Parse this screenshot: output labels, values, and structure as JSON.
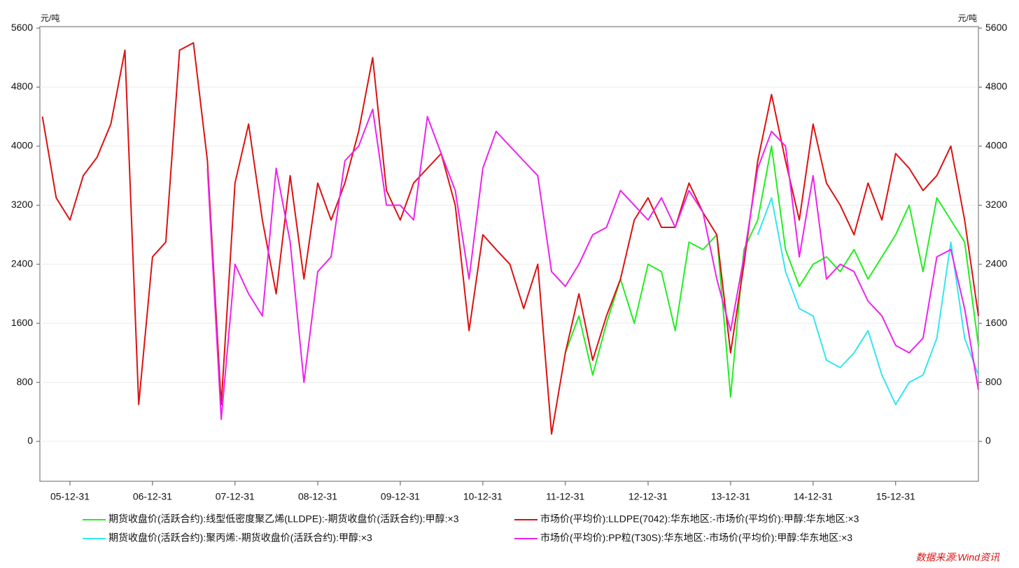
{
  "chart_data": {
    "type": "line",
    "y_unit_left": "元/吨",
    "y_unit_right": "元/吨",
    "source": "数据来源:Wind资讯",
    "x": [
      "05-08-31",
      "05-10-31",
      "05-12-31",
      "06-02-28",
      "06-04-30",
      "06-06-30",
      "06-08-31",
      "06-10-31",
      "06-12-31",
      "07-02-28",
      "07-04-30",
      "07-06-30",
      "07-08-31",
      "07-10-31",
      "07-12-31",
      "08-02-29",
      "08-04-30",
      "08-06-30",
      "08-08-31",
      "08-10-31",
      "08-12-31",
      "09-02-28",
      "09-04-30",
      "09-06-30",
      "09-08-31",
      "09-10-31",
      "09-12-31",
      "10-02-28",
      "10-04-30",
      "10-06-30",
      "10-08-31",
      "10-10-31",
      "10-12-31",
      "11-02-28",
      "11-04-30",
      "11-06-30",
      "11-08-31",
      "11-10-31",
      "11-12-31",
      "12-02-29",
      "12-04-30",
      "12-06-30",
      "12-08-31",
      "12-10-31",
      "12-12-31",
      "13-02-28",
      "13-04-30",
      "13-06-30",
      "13-08-31",
      "13-10-31",
      "13-12-31",
      "14-02-28",
      "14-04-30",
      "14-06-30",
      "14-08-31",
      "14-10-31",
      "14-12-31",
      "15-02-28",
      "15-04-30",
      "15-06-30",
      "15-08-31",
      "15-10-31",
      "15-12-31",
      "16-02-29",
      "16-04-30",
      "16-06-30",
      "16-08-31",
      "16-10-31",
      "16-12-31"
    ],
    "xlim": [
      "05-08-20",
      "16-12-31"
    ],
    "xticks": [
      "05-12-31",
      "06-12-31",
      "07-12-31",
      "08-12-31",
      "09-12-31",
      "10-12-31",
      "11-12-31",
      "12-12-31",
      "13-12-31",
      "14-12-31",
      "15-12-31"
    ],
    "ylim": [
      -540,
      5620
    ],
    "yticks": [
      0,
      800,
      1600,
      2400,
      3200,
      4000,
      4800,
      5600
    ],
    "y2lim": [
      -540,
      5620
    ],
    "y2ticks": [
      0,
      800,
      1600,
      2400,
      3200,
      4000,
      4800,
      5600
    ],
    "grid": true,
    "series": [
      {
        "name": "期货收盘价(活跃合约):线型低密度聚乙烯(LLDPE):-期货收盘价(活跃合约):甲醇:×3",
        "color": "#22ee22",
        "values": [
          null,
          null,
          null,
          null,
          null,
          null,
          null,
          null,
          null,
          null,
          null,
          null,
          null,
          null,
          null,
          null,
          null,
          null,
          null,
          null,
          null,
          null,
          null,
          null,
          null,
          null,
          null,
          null,
          null,
          null,
          null,
          null,
          null,
          null,
          null,
          null,
          null,
          null,
          1200,
          1700,
          900,
          1600,
          2200,
          1600,
          2400,
          2300,
          1500,
          2700,
          2600,
          2800,
          600,
          2600,
          3000,
          4000,
          2600,
          2100,
          2400,
          2500,
          2300,
          2600,
          2200,
          2500,
          2800,
          3200,
          2300,
          3300,
          3000,
          2700,
          1300
        ]
      },
      {
        "name": "期货收盘价(活跃合约):聚丙烯:-期货收盘价(活跃合约):甲醇:×3",
        "color": "#33e6f0",
        "values": [
          null,
          null,
          null,
          null,
          null,
          null,
          null,
          null,
          null,
          null,
          null,
          null,
          null,
          null,
          null,
          null,
          null,
          null,
          null,
          null,
          null,
          null,
          null,
          null,
          null,
          null,
          null,
          null,
          null,
          null,
          null,
          null,
          null,
          null,
          null,
          null,
          null,
          null,
          null,
          null,
          null,
          null,
          null,
          null,
          null,
          null,
          null,
          null,
          null,
          null,
          null,
          null,
          2800,
          3300,
          2300,
          1800,
          1700,
          1100,
          1000,
          1200,
          1500,
          900,
          500,
          800,
          900,
          1400,
          2700,
          1400,
          900
        ]
      },
      {
        "name": "市场价(平均价):LLDPE(7042):华东地区:-市场价(平均价):甲醇:华东地区:×3",
        "color": "#dd1111",
        "values": [
          4400,
          3300,
          3000,
          3600,
          3850,
          4300,
          5300,
          500,
          2500,
          2700,
          5300,
          5400,
          3800,
          500,
          3500,
          4300,
          3000,
          2000,
          3600,
          2200,
          3500,
          3000,
          3500,
          4200,
          5200,
          3400,
          3000,
          3500,
          3700,
          3900,
          3200,
          1500,
          2800,
          2600,
          2400,
          1800,
          2400,
          100,
          1200,
          2000,
          1100,
          1700,
          2200,
          3000,
          3300,
          2900,
          2900,
          3500,
          3100,
          2800,
          1200,
          2400,
          3800,
          4700,
          3800,
          3000,
          4300,
          3500,
          3200,
          2800,
          3500,
          3000,
          3900,
          3700,
          3400,
          3600,
          4000,
          3000,
          1700
        ]
      },
      {
        "name": "市场价(平均价):PP粒(T30S):华东地区:-市场价(平均价):甲醇:华东地区:×3",
        "color": "#ee22ee",
        "values": [
          null,
          null,
          null,
          null,
          null,
          null,
          null,
          null,
          null,
          null,
          null,
          null,
          3700,
          300,
          2400,
          2000,
          1700,
          3700,
          2700,
          800,
          2300,
          2500,
          3800,
          4000,
          4500,
          3200,
          3200,
          3000,
          4400,
          3900,
          3400,
          2200,
          3700,
          4200,
          4000,
          3800,
          3600,
          2300,
          2100,
          2400,
          2800,
          2900,
          3400,
          3200,
          3000,
          3300,
          2900,
          3400,
          3100,
          2200,
          1500,
          2500,
          3700,
          4200,
          4000,
          2500,
          3600,
          2200,
          2400,
          2300,
          1900,
          1700,
          1300,
          1200,
          1400,
          2500,
          2600,
          1800,
          700
        ]
      }
    ]
  }
}
